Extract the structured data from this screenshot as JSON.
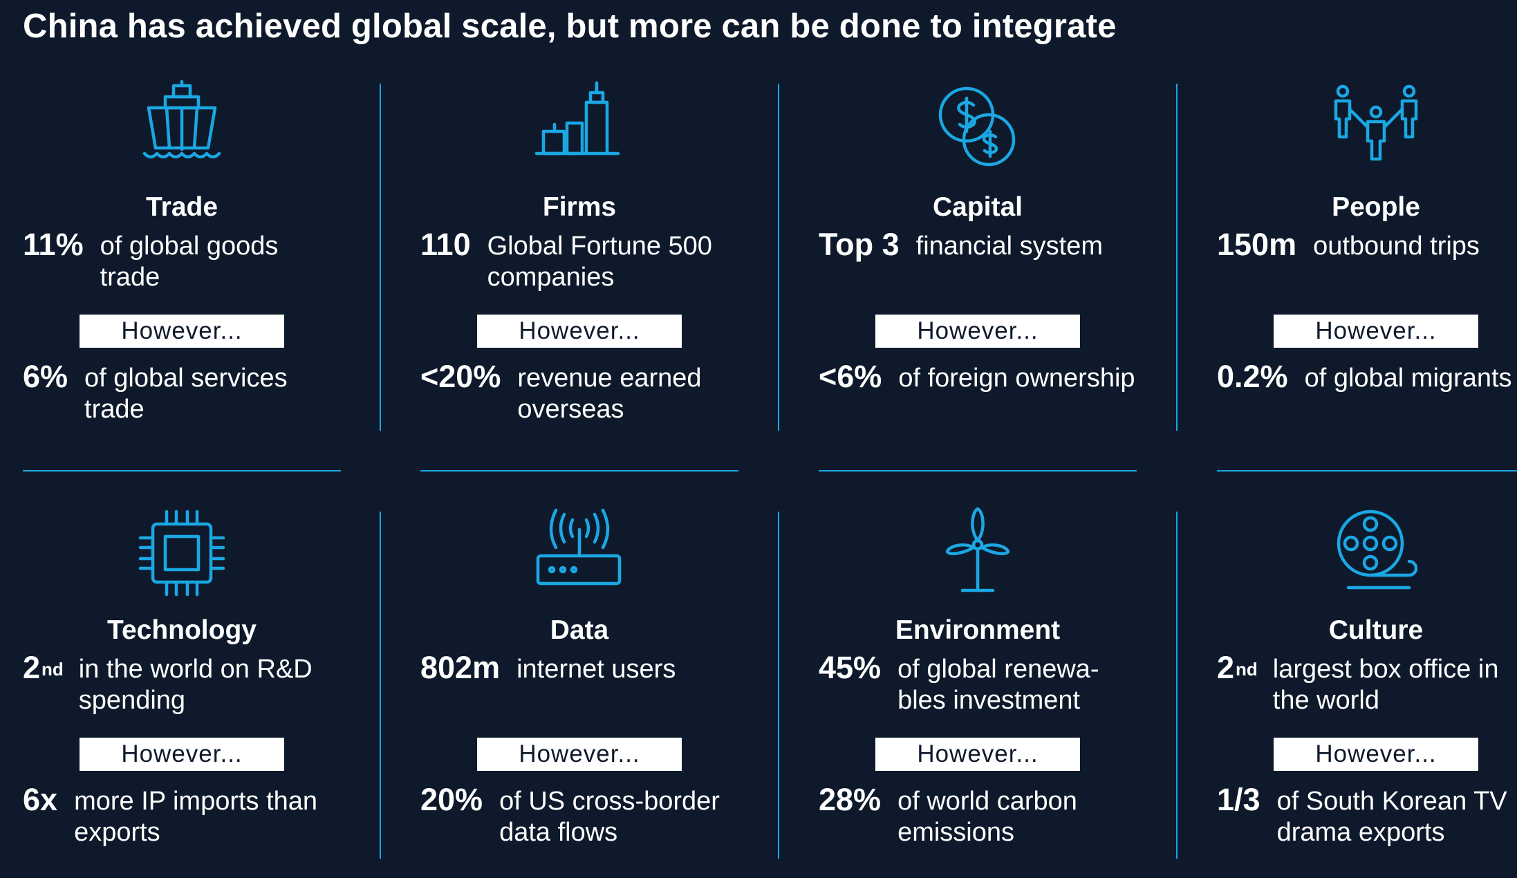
{
  "title": "China has achieved global scale, but more can be done to integrate",
  "accent_color": "#1ba7e3",
  "background_color": "#0e1a2b",
  "however_label": "However...",
  "cells": [
    {
      "icon": "ship-icon",
      "category": "Trade",
      "stat1": {
        "num": "11%",
        "sup": "",
        "desc": "of global goods trade"
      },
      "stat2": {
        "num": "6%",
        "sup": "",
        "desc": "of global services trade"
      }
    },
    {
      "icon": "buildings-icon",
      "category": "Firms",
      "stat1": {
        "num": "110",
        "sup": "",
        "desc": "Global Fortune 500 companies"
      },
      "stat2": {
        "num": "<20%",
        "sup": "",
        "desc": "revenue earned overseas"
      }
    },
    {
      "icon": "coins-icon",
      "category": "Capital",
      "stat1": {
        "num": "Top 3",
        "sup": "",
        "desc": "financial system"
      },
      "stat2": {
        "num": "<6%",
        "sup": "",
        "desc": "of foreign ownership"
      }
    },
    {
      "icon": "people-icon",
      "category": "People",
      "stat1": {
        "num": "150m",
        "sup": "",
        "desc": "outbound trips"
      },
      "stat2": {
        "num": "0.2%",
        "sup": "",
        "desc": "of global migrants"
      }
    },
    {
      "icon": "chip-icon",
      "category": "Technology",
      "stat1": {
        "num": "2",
        "sup": "nd",
        "desc": "in the world on R&D spending"
      },
      "stat2": {
        "num": "6x",
        "sup": "",
        "desc": "more IP imports than exports"
      }
    },
    {
      "icon": "router-icon",
      "category": "Data",
      "stat1": {
        "num": "802m",
        "sup": "",
        "desc": "internet users"
      },
      "stat2": {
        "num": "20%",
        "sup": "",
        "desc": "of US cross-border data flows"
      }
    },
    {
      "icon": "wind-turbine-icon",
      "category": "Environment",
      "stat1": {
        "num": "45%",
        "sup": "",
        "desc": "of global renewa-bles investment"
      },
      "stat2": {
        "num": "28%",
        "sup": "",
        "desc": "of world carbon emissions"
      }
    },
    {
      "icon": "film-reel-icon",
      "category": "Culture",
      "stat1": {
        "num": "2",
        "sup": "nd",
        "desc": "largest box office in the world"
      },
      "stat2": {
        "num": "1/3",
        "sup": "",
        "desc": "of South Korean TV drama exports"
      }
    }
  ]
}
